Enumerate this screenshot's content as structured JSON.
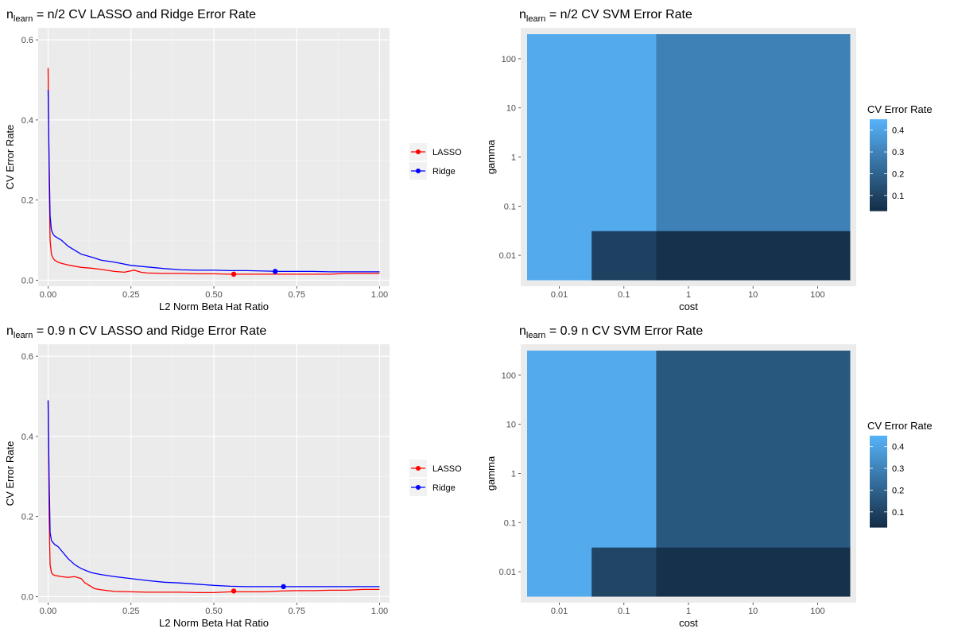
{
  "chart_data": [
    {
      "type": "line",
      "title_main": "n",
      "title_sub": "learn",
      "title_rest": " = n/2  CV LASSO and Ridge Error Rate",
      "xlabel": "L2 Norm Beta Hat Ratio",
      "ylabel": "CV Error Rate",
      "xlim": [
        -0.03,
        1.03
      ],
      "ylim": [
        -0.015,
        0.63
      ],
      "xticks": [
        0,
        0.25,
        0.5,
        0.75,
        1.0
      ],
      "xtick_labels": [
        "0.00",
        "0.25",
        "0.50",
        "0.75",
        "1.00"
      ],
      "yticks": [
        0,
        0.2,
        0.4,
        0.6
      ],
      "ytick_labels": [
        "0.0",
        "0.2",
        "0.4",
        "0.6"
      ],
      "grid": true,
      "legend_position": "right",
      "series": [
        {
          "name": "LASSO",
          "color": "#ff0000",
          "x": [
            0,
            0.003,
            0.006,
            0.01,
            0.015,
            0.02,
            0.03,
            0.04,
            0.06,
            0.08,
            0.1,
            0.13,
            0.16,
            0.2,
            0.23,
            0.26,
            0.28,
            0.3,
            0.35,
            0.4,
            0.45,
            0.5,
            0.55,
            0.6,
            0.65,
            0.7,
            0.75,
            0.8,
            0.85,
            0.9,
            0.95,
            1.0
          ],
          "y": [
            0.53,
            0.25,
            0.1,
            0.065,
            0.055,
            0.05,
            0.045,
            0.042,
            0.038,
            0.035,
            0.032,
            0.03,
            0.027,
            0.022,
            0.02,
            0.025,
            0.02,
            0.018,
            0.017,
            0.017,
            0.016,
            0.016,
            0.015,
            0.015,
            0.015,
            0.015,
            0.015,
            0.015,
            0.015,
            0.017,
            0.017,
            0.017
          ],
          "highlight": {
            "x": 0.56,
            "y": 0.015
          }
        },
        {
          "name": "Ridge",
          "color": "#0000ff",
          "x": [
            0,
            0.003,
            0.006,
            0.01,
            0.015,
            0.02,
            0.03,
            0.04,
            0.06,
            0.08,
            0.1,
            0.13,
            0.16,
            0.2,
            0.25,
            0.3,
            0.35,
            0.4,
            0.45,
            0.5,
            0.55,
            0.6,
            0.65,
            0.7,
            0.75,
            0.8,
            0.85,
            0.9,
            0.95,
            1.0
          ],
          "y": [
            0.475,
            0.3,
            0.16,
            0.125,
            0.115,
            0.11,
            0.105,
            0.1,
            0.085,
            0.075,
            0.065,
            0.058,
            0.05,
            0.045,
            0.037,
            0.033,
            0.029,
            0.026,
            0.025,
            0.025,
            0.024,
            0.024,
            0.023,
            0.022,
            0.022,
            0.022,
            0.021,
            0.021,
            0.021,
            0.021
          ],
          "highlight": {
            "x": 0.685,
            "y": 0.022
          }
        }
      ]
    },
    {
      "type": "heatmap",
      "title_main": "n",
      "title_sub": "learn",
      "title_rest": " = n/2  CV SVM Error Rate",
      "xlabel": "cost",
      "ylabel": "gamma",
      "x_categories": [
        "0.01",
        "0.1",
        "1",
        "10",
        "100"
      ],
      "y_categories": [
        "0.01",
        "0.1",
        "1",
        "10",
        "100"
      ],
      "values": [
        [
          0.43,
          0.1,
          0.05,
          0.05,
          0.05
        ],
        [
          0.43,
          0.43,
          0.3,
          0.3,
          0.3
        ],
        [
          0.43,
          0.43,
          0.3,
          0.3,
          0.3
        ],
        [
          0.43,
          0.43,
          0.3,
          0.3,
          0.3
        ],
        [
          0.43,
          0.43,
          0.3,
          0.3,
          0.3
        ]
      ],
      "legend_title": "CV Error Rate",
      "legend_ticks": [
        0.1,
        0.2,
        0.3,
        0.4
      ],
      "legend_tick_labels": [
        "0.1",
        "0.2",
        "0.3",
        "0.4"
      ],
      "value_range": [
        0.03,
        0.45
      ],
      "color_low": "#132B43",
      "color_high": "#56B1F7"
    },
    {
      "type": "line",
      "title_main": "n",
      "title_sub": "learn",
      "title_rest": " = 0.9 n  CV LASSO and Ridge Error Rate",
      "xlabel": "L2 Norm Beta Hat Ratio",
      "ylabel": "CV Error Rate",
      "xlim": [
        -0.03,
        1.03
      ],
      "ylim": [
        -0.015,
        0.63
      ],
      "xticks": [
        0,
        0.25,
        0.5,
        0.75,
        1.0
      ],
      "xtick_labels": [
        "0.00",
        "0.25",
        "0.50",
        "0.75",
        "1.00"
      ],
      "yticks": [
        0,
        0.2,
        0.4,
        0.6
      ],
      "ytick_labels": [
        "0.0",
        "0.2",
        "0.4",
        "0.6"
      ],
      "grid": true,
      "legend_position": "right",
      "series": [
        {
          "name": "LASSO",
          "color": "#ff0000",
          "x": [
            0,
            0.003,
            0.006,
            0.01,
            0.015,
            0.02,
            0.04,
            0.06,
            0.08,
            0.1,
            0.11,
            0.12,
            0.14,
            0.16,
            0.2,
            0.25,
            0.3,
            0.35,
            0.4,
            0.45,
            0.5,
            0.55,
            0.6,
            0.65,
            0.7,
            0.75,
            0.8,
            0.85,
            0.9,
            0.95,
            1.0
          ],
          "y": [
            0.49,
            0.2,
            0.08,
            0.06,
            0.055,
            0.053,
            0.05,
            0.048,
            0.05,
            0.045,
            0.035,
            0.03,
            0.02,
            0.017,
            0.013,
            0.012,
            0.011,
            0.011,
            0.011,
            0.01,
            0.01,
            0.012,
            0.012,
            0.012,
            0.014,
            0.015,
            0.015,
            0.016,
            0.016,
            0.018,
            0.018
          ],
          "highlight": {
            "x": 0.56,
            "y": 0.014
          }
        },
        {
          "name": "Ridge",
          "color": "#0000ff",
          "x": [
            0,
            0.003,
            0.006,
            0.01,
            0.015,
            0.02,
            0.03,
            0.04,
            0.06,
            0.08,
            0.1,
            0.13,
            0.16,
            0.2,
            0.25,
            0.3,
            0.35,
            0.4,
            0.45,
            0.5,
            0.55,
            0.6,
            0.65,
            0.7,
            0.75,
            0.8,
            0.85,
            0.9,
            0.95,
            1.0
          ],
          "y": [
            0.49,
            0.3,
            0.16,
            0.14,
            0.135,
            0.13,
            0.125,
            0.115,
            0.095,
            0.08,
            0.07,
            0.06,
            0.055,
            0.05,
            0.045,
            0.04,
            0.036,
            0.034,
            0.031,
            0.028,
            0.026,
            0.025,
            0.025,
            0.025,
            0.025,
            0.025,
            0.025,
            0.025,
            0.025,
            0.025
          ],
          "highlight": {
            "x": 0.71,
            "y": 0.025
          }
        }
      ]
    },
    {
      "type": "heatmap",
      "title_main": "n",
      "title_sub": "learn",
      "title_rest": " = 0.9 n  CV SVM Error Rate",
      "xlabel": "cost",
      "ylabel": "gamma",
      "x_categories": [
        "0.01",
        "0.1",
        "1",
        "10",
        "100"
      ],
      "y_categories": [
        "0.01",
        "0.1",
        "1",
        "10",
        "100"
      ],
      "values": [
        [
          0.43,
          0.11,
          0.05,
          0.05,
          0.05
        ],
        [
          0.43,
          0.43,
          0.17,
          0.17,
          0.17
        ],
        [
          0.43,
          0.43,
          0.17,
          0.17,
          0.17
        ],
        [
          0.43,
          0.43,
          0.17,
          0.17,
          0.17
        ],
        [
          0.43,
          0.43,
          0.17,
          0.17,
          0.17
        ]
      ],
      "legend_title": "CV Error Rate",
      "legend_ticks": [
        0.1,
        0.2,
        0.3,
        0.4
      ],
      "legend_tick_labels": [
        "0.1",
        "0.2",
        "0.3",
        "0.4"
      ],
      "value_range": [
        0.03,
        0.45
      ],
      "color_low": "#132B43",
      "color_high": "#56B1F7"
    }
  ]
}
